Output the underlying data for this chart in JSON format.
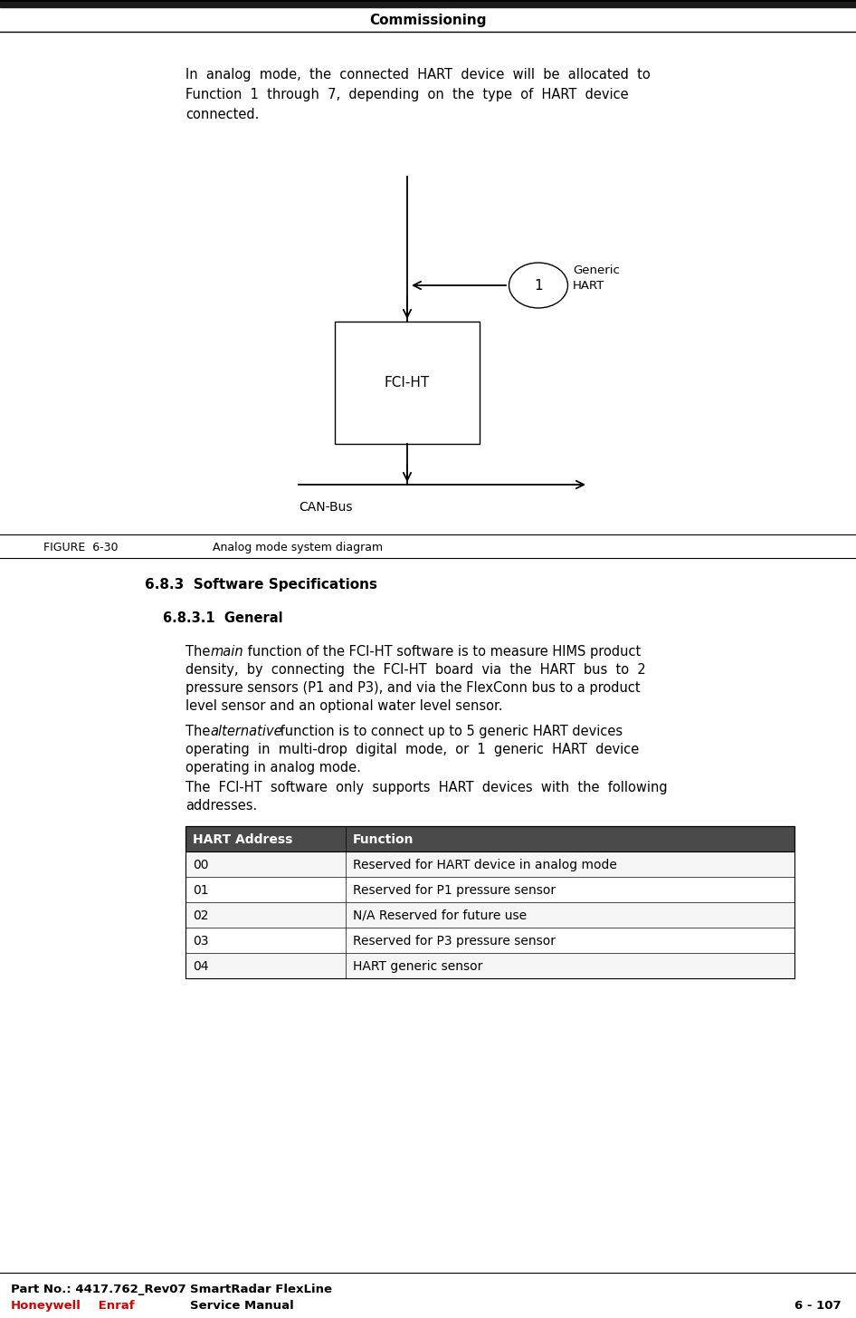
{
  "page_title": "Commissioning",
  "figure_label": "FIGURE  6-30",
  "figure_caption": "Analog mode system diagram",
  "diagram": {
    "fci_ht_label": "FCI-HT",
    "can_bus_label": "CAN-Bus",
    "generic_hart_label": "Generic\nHART",
    "circle_label": "1"
  },
  "section_683": "6.8.3  Software Specifications",
  "section_6831": "6.8.3.1  General",
  "table_headers": [
    "HART Address",
    "Function"
  ],
  "table_rows": [
    [
      "00",
      "Reserved for HART device in analog mode"
    ],
    [
      "01",
      "Reserved for P1 pressure sensor"
    ],
    [
      "02",
      "N/A Reserved for future use"
    ],
    [
      "03",
      "Reserved for P3 pressure sensor"
    ],
    [
      "04",
      "HART generic sensor"
    ]
  ],
  "footer_left1": "Part No.: 4417.762_Rev07",
  "footer_mid1": "SmartRadar FlexLine",
  "footer_mid2": "Service Manual",
  "footer_right": "6 - 107",
  "header_bg": "#1a1a1a",
  "table_header_bg": "#4a4a4a",
  "honeywell_color": "#cc0000"
}
